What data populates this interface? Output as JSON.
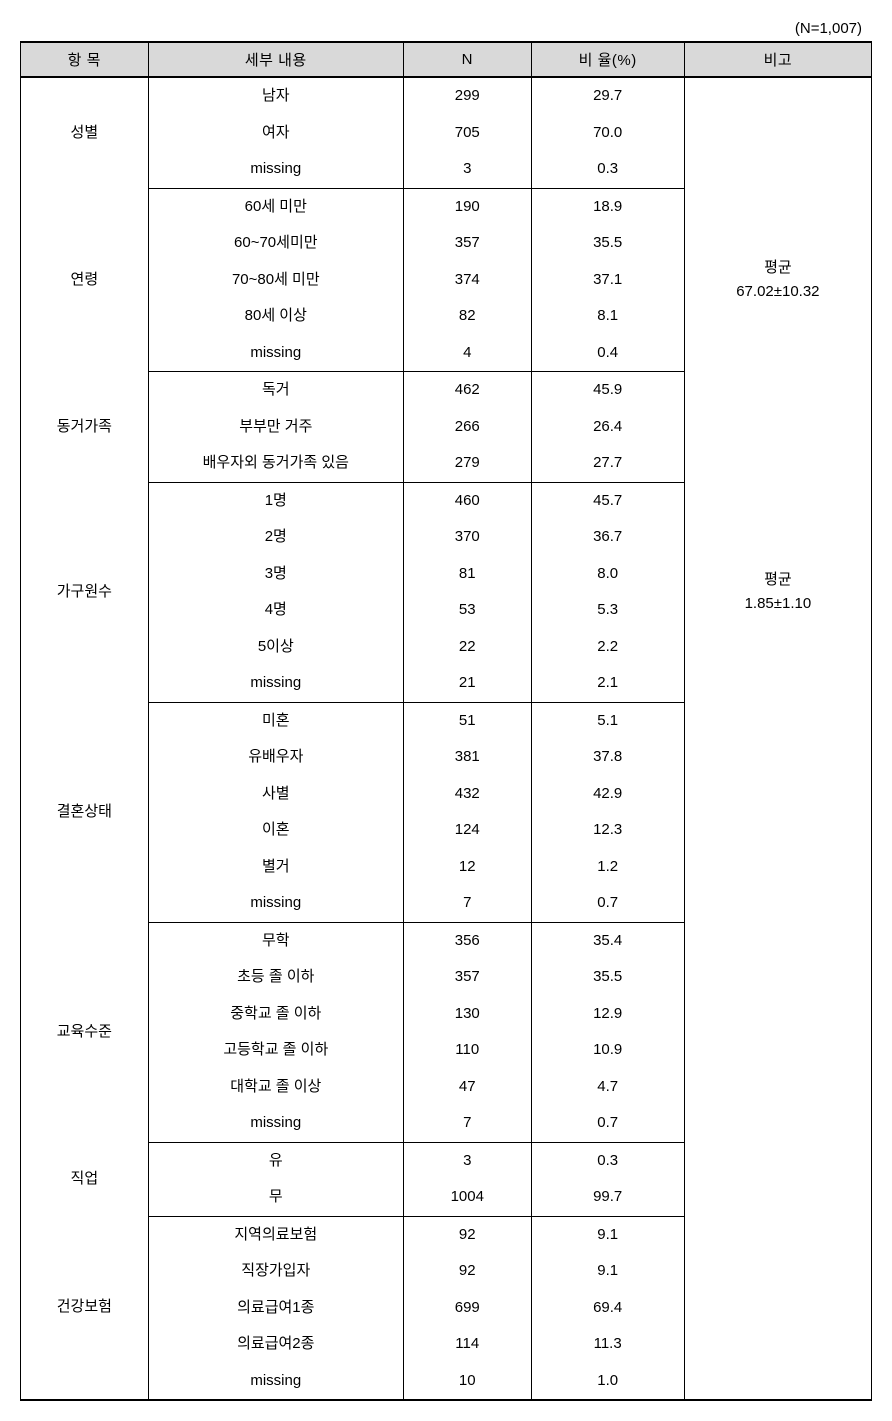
{
  "caption": "(N=1,007)",
  "headers": {
    "category": "항 목",
    "detail": "세부 내용",
    "n": "N",
    "pct": "비 율(%)",
    "note": "비고"
  },
  "sections": [
    {
      "category": "성별",
      "note": "",
      "rows": [
        {
          "detail": "남자",
          "n": "299",
          "pct": "29.7"
        },
        {
          "detail": "여자",
          "n": "705",
          "pct": "70.0"
        },
        {
          "detail": "missing",
          "n": "3",
          "pct": "0.3"
        }
      ]
    },
    {
      "category": "연령",
      "note": "평균\n67.02±10.32",
      "rows": [
        {
          "detail": "60세 미만",
          "n": "190",
          "pct": "18.9"
        },
        {
          "detail": "60~70세미만",
          "n": "357",
          "pct": "35.5"
        },
        {
          "detail": "70~80세 미만",
          "n": "374",
          "pct": "37.1"
        },
        {
          "detail": "80세 이상",
          "n": "82",
          "pct": "8.1"
        },
        {
          "detail": "missing",
          "n": "4",
          "pct": "0.4"
        }
      ]
    },
    {
      "category": "동거가족",
      "note": "",
      "rows": [
        {
          "detail": "독거",
          "n": "462",
          "pct": "45.9"
        },
        {
          "detail": "부부만 거주",
          "n": "266",
          "pct": "26.4"
        },
        {
          "detail": "배우자외 동거가족 있음",
          "n": "279",
          "pct": "27.7"
        }
      ]
    },
    {
      "category": "가구원수",
      "note": "평균\n1.85±1.10",
      "rows": [
        {
          "detail": "1명",
          "n": "460",
          "pct": "45.7"
        },
        {
          "detail": "2명",
          "n": "370",
          "pct": "36.7"
        },
        {
          "detail": "3명",
          "n": "81",
          "pct": "8.0"
        },
        {
          "detail": "4명",
          "n": "53",
          "pct": "5.3"
        },
        {
          "detail": "5이상",
          "n": "22",
          "pct": "2.2"
        },
        {
          "detail": "missing",
          "n": "21",
          "pct": "2.1"
        }
      ]
    },
    {
      "category": "결혼상태",
      "note": "",
      "rows": [
        {
          "detail": "미혼",
          "n": "51",
          "pct": "5.1"
        },
        {
          "detail": "유배우자",
          "n": "381",
          "pct": "37.8"
        },
        {
          "detail": "사별",
          "n": "432",
          "pct": "42.9"
        },
        {
          "detail": "이혼",
          "n": "124",
          "pct": "12.3"
        },
        {
          "detail": "별거",
          "n": "12",
          "pct": "1.2"
        },
        {
          "detail": "missing",
          "n": "7",
          "pct": "0.7"
        }
      ]
    },
    {
      "category": "교육수준",
      "note": "",
      "rows": [
        {
          "detail": "무학",
          "n": "356",
          "pct": "35.4"
        },
        {
          "detail": "초등 졸 이하",
          "n": "357",
          "pct": "35.5"
        },
        {
          "detail": "중학교 졸 이하",
          "n": "130",
          "pct": "12.9"
        },
        {
          "detail": "고등학교 졸 이하",
          "n": "110",
          "pct": "10.9"
        },
        {
          "detail": "대학교 졸 이상",
          "n": "47",
          "pct": "4.7"
        },
        {
          "detail": "missing",
          "n": "7",
          "pct": "0.7"
        }
      ]
    },
    {
      "category": "직업",
      "note": "",
      "rows": [
        {
          "detail": "유",
          "n": "3",
          "pct": "0.3"
        },
        {
          "detail": "무",
          "n": "1004",
          "pct": "99.7"
        }
      ]
    },
    {
      "category": "건강보험",
      "note": "",
      "rows": [
        {
          "detail": "지역의료보험",
          "n": "92",
          "pct": "9.1"
        },
        {
          "detail": "직장가입자",
          "n": "92",
          "pct": "9.1"
        },
        {
          "detail": "의료급여1종",
          "n": "699",
          "pct": "69.4"
        },
        {
          "detail": "의료급여2종",
          "n": "114",
          "pct": "11.3"
        },
        {
          "detail": "missing",
          "n": "10",
          "pct": "1.0"
        }
      ]
    }
  ]
}
